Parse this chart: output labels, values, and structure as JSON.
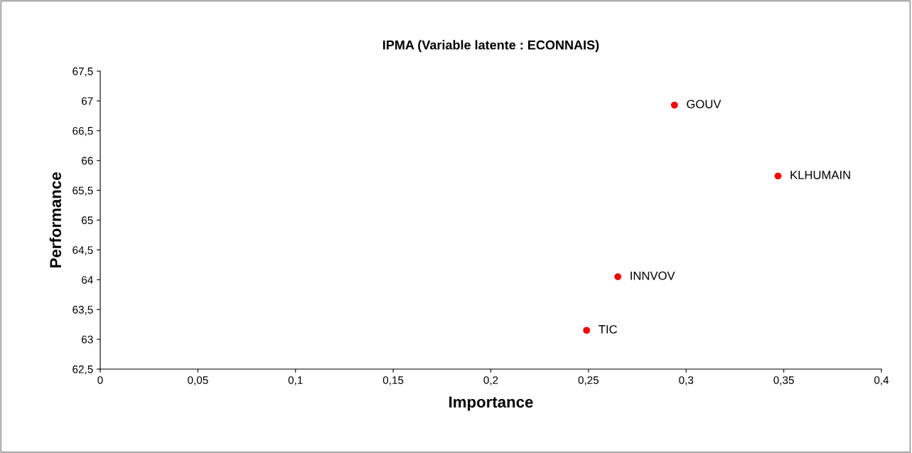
{
  "chart_data": {
    "type": "scatter",
    "title": "IPMA (Variable latente : ECONNAIS)",
    "xlabel": "Importance",
    "ylabel": "Performance",
    "x": [
      0.294,
      0.347,
      0.265,
      0.249
    ],
    "series": [
      {
        "color": "#ff0000",
        "values": [
          66.93,
          65.74,
          64.05,
          63.15
        ]
      }
    ],
    "annotations": [
      {
        "text": "GOUV",
        "x": 0.294,
        "y": 66.93
      },
      {
        "text": "KLHUMAIN",
        "x": 0.347,
        "y": 65.74
      },
      {
        "text": "INNVOV",
        "x": 0.265,
        "y": 64.05
      },
      {
        "text": "TIC",
        "x": 0.249,
        "y": 63.15
      }
    ],
    "xlim": [
      0,
      0.4
    ],
    "ylim": [
      62.5,
      67.5
    ],
    "xticks": [
      0,
      {
        "value": 0.05,
        "label": "0,05"
      },
      {
        "value": 0.1,
        "label": "0,1"
      },
      {
        "value": 0.15,
        "label": "0,15"
      },
      {
        "value": 0.2,
        "label": "0,2"
      },
      {
        "value": 0.25,
        "label": "0,25"
      },
      {
        "value": 0.3,
        "label": "0,3"
      },
      {
        "value": 0.35,
        "label": "0,35"
      },
      {
        "value": 0.4,
        "label": "0,4"
      }
    ],
    "yticks": [
      {
        "value": 62.5,
        "label": "62,5"
      },
      63,
      {
        "value": 63.5,
        "label": "63,5"
      },
      64,
      {
        "value": 64.5,
        "label": "64,5"
      },
      65,
      {
        "value": 65.5,
        "label": "65,5"
      },
      66,
      {
        "value": 66.5,
        "label": "66,5"
      },
      67,
      {
        "value": 67.5,
        "label": "67,5"
      }
    ],
    "marker": "circle",
    "grid": false,
    "legend": false
  }
}
